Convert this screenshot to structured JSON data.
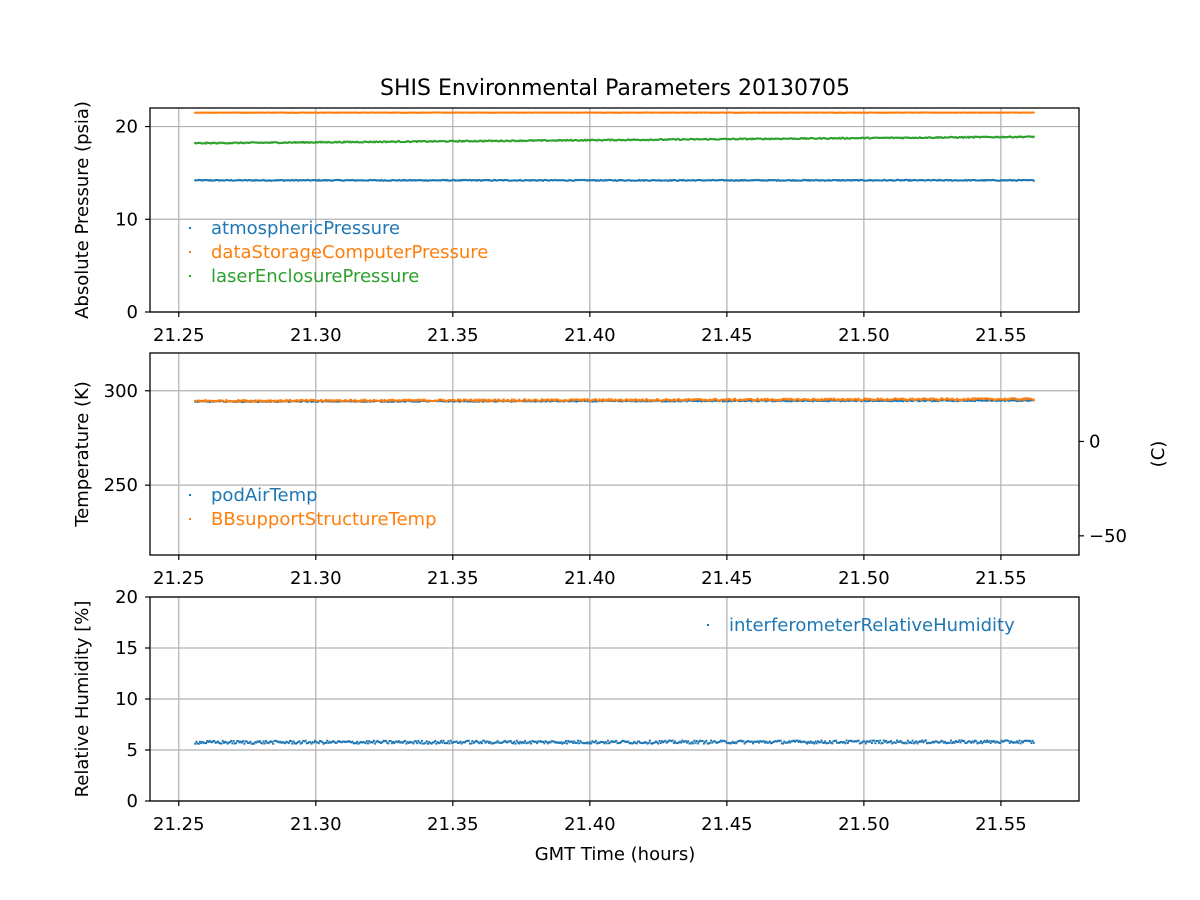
{
  "figure": {
    "title": "SHIS Environmental Parameters 20130705",
    "xlabel": "GMT Time (hours)"
  },
  "chart_data": [
    {
      "type": "scatter",
      "id": "pressure",
      "ylabel": "Absolute Pressure (psia)",
      "xlim": [
        21.2395,
        21.5785
      ],
      "ylim": [
        0,
        22
      ],
      "xticks": [
        21.25,
        21.3,
        21.35,
        21.4,
        21.45,
        21.5,
        21.55
      ],
      "xtick_labels": [
        "21.25",
        "21.30",
        "21.35",
        "21.40",
        "21.45",
        "21.50",
        "21.55"
      ],
      "yticks": [
        0,
        10,
        20
      ],
      "ytick_labels": [
        "0",
        "10",
        "20"
      ],
      "grid": true,
      "legend_position": "lower-left",
      "series": [
        {
          "name": "atmosphericPressure",
          "color": "#1f77b4",
          "x_start": 21.256,
          "x_end": 21.562,
          "y_start": 14.2,
          "y_end": 14.2,
          "noise": 0.05
        },
        {
          "name": "dataStorageComputerPressure",
          "color": "#ff7f0e",
          "x_start": 21.256,
          "x_end": 21.562,
          "y_start": 21.5,
          "y_end": 21.5,
          "noise": 0.02
        },
        {
          "name": "laserEnclosurePressure",
          "color": "#2ca02c",
          "x_start": 21.256,
          "x_end": 21.562,
          "y_start": 18.2,
          "y_end": 18.9,
          "noise": 0.06
        }
      ]
    },
    {
      "type": "scatter",
      "id": "temperature",
      "ylabel": "Temperature (K)",
      "ylabel_right": "(C)",
      "xlim": [
        21.2395,
        21.5785
      ],
      "ylim": [
        213,
        320
      ],
      "xticks": [
        21.25,
        21.3,
        21.35,
        21.4,
        21.45,
        21.5,
        21.55
      ],
      "xtick_labels": [
        "21.25",
        "21.30",
        "21.35",
        "21.40",
        "21.45",
        "21.50",
        "21.55"
      ],
      "yticks": [
        250,
        300
      ],
      "ytick_labels": [
        "250",
        "300"
      ],
      "yticks_right": [
        0,
        -50
      ],
      "ytick_labels_right": [
        "0",
        "−50"
      ],
      "grid": true,
      "legend_position": "lower-left",
      "series": [
        {
          "name": "podAirTemp",
          "color": "#1f77b4",
          "x_start": 21.256,
          "x_end": 21.562,
          "y_start": 294.3,
          "y_end": 294.8,
          "noise": 0.3
        },
        {
          "name": "BBsupportStructureTemp",
          "color": "#ff7f0e",
          "x_start": 21.256,
          "x_end": 21.562,
          "y_start": 294.6,
          "y_end": 295.6,
          "noise": 0.5
        }
      ]
    },
    {
      "type": "scatter",
      "id": "humidity",
      "ylabel": "Relative Humidity [%]",
      "xlim": [
        21.2395,
        21.5785
      ],
      "ylim": [
        0,
        20
      ],
      "xticks": [
        21.25,
        21.3,
        21.35,
        21.4,
        21.45,
        21.5,
        21.55
      ],
      "xtick_labels": [
        "21.25",
        "21.30",
        "21.35",
        "21.40",
        "21.45",
        "21.50",
        "21.55"
      ],
      "yticks": [
        0,
        5,
        10,
        15,
        20
      ],
      "ytick_labels": [
        "0",
        "5",
        "10",
        "15",
        "20"
      ],
      "grid": true,
      "legend_position": "upper-right",
      "series": [
        {
          "name": "interferometerRelativeHumidity",
          "color": "#1f77b4",
          "x_start": 21.256,
          "x_end": 21.562,
          "y_start": 5.75,
          "y_end": 5.8,
          "noise": 0.15
        }
      ]
    }
  ]
}
